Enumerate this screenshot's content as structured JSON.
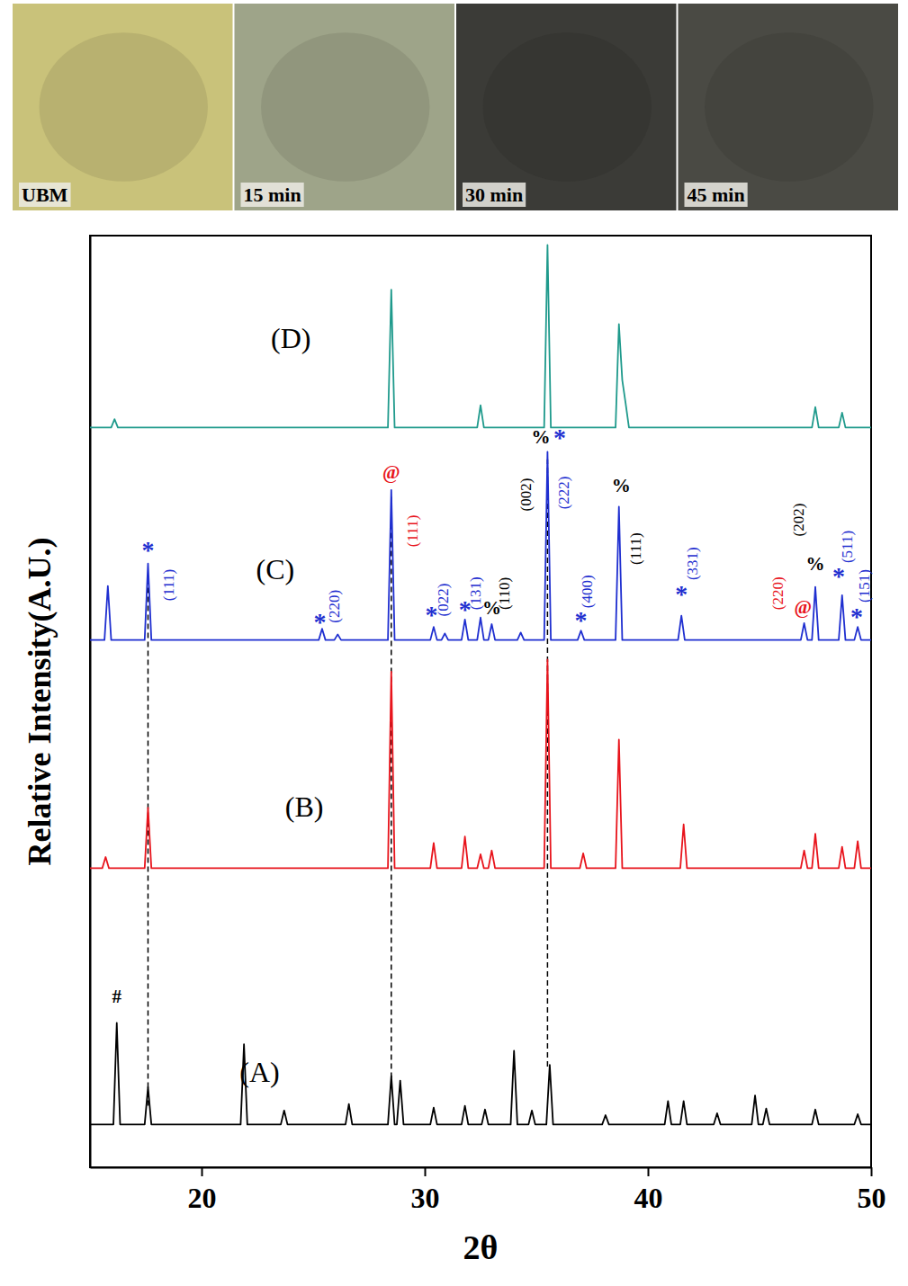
{
  "photos": [
    {
      "label": "UBM"
    },
    {
      "label": "15 min"
    },
    {
      "label": "30 min"
    },
    {
      "label": "45 min"
    }
  ],
  "chart_data": {
    "type": "line",
    "x_label": "2θ",
    "y_label": "Relative Intensity(A.U.)",
    "xlim": [
      15,
      50
    ],
    "xticks": [
      20,
      30,
      40,
      50
    ],
    "ylim": [
      0,
      100
    ],
    "yticks": [],
    "tick_labels": "x",
    "grid": false,
    "series": [
      {
        "name": "(A)",
        "color": "#000000",
        "label_x": 22.6,
        "label_y": 9.9,
        "x": [
          15,
          16.05,
          16.2,
          16.35,
          17.45,
          17.6,
          17.75,
          21.75,
          21.9,
          22.05,
          23.55,
          23.7,
          23.85,
          26.45,
          26.6,
          26.75,
          28.35,
          28.5,
          28.65,
          28.75,
          28.9,
          29.05,
          30.25,
          30.4,
          30.55,
          31.65,
          31.8,
          31.95,
          32.55,
          32.7,
          32.85,
          33.85,
          34.0,
          34.15,
          34.65,
          34.8,
          34.95,
          35.45,
          35.6,
          35.75,
          37.95,
          38.1,
          38.25,
          40.75,
          40.9,
          41.05,
          41.45,
          41.6,
          41.75,
          42.95,
          43.1,
          43.25,
          44.65,
          44.8,
          44.95,
          45.15,
          45.3,
          45.45,
          47.35,
          47.5,
          47.65,
          49.25,
          49.4,
          49.55,
          50
        ],
        "values": [
          4.6,
          4.6,
          15.5,
          4.6,
          4.6,
          8.6,
          4.6,
          4.6,
          13.2,
          4.6,
          4.6,
          6.1,
          4.6,
          4.6,
          6.8,
          4.6,
          4.6,
          9.8,
          4.6,
          4.6,
          9.3,
          4.6,
          4.6,
          6.4,
          4.6,
          4.6,
          6.6,
          4.6,
          4.6,
          6.2,
          4.6,
          4.6,
          12.5,
          4.6,
          4.6,
          6.1,
          4.6,
          4.6,
          11.0,
          4.6,
          4.6,
          5.6,
          4.6,
          4.6,
          7.1,
          4.6,
          4.6,
          7.1,
          4.6,
          4.6,
          5.8,
          4.6,
          4.6,
          7.7,
          4.6,
          4.6,
          6.3,
          4.6,
          4.6,
          6.2,
          4.6,
          4.6,
          5.7,
          4.6,
          4.6
        ]
      },
      {
        "name": "(B)",
        "color": "#e8141c",
        "label_x": 24.6,
        "label_y": 38.4,
        "x": [
          15,
          15.55,
          15.7,
          15.85,
          17.45,
          17.6,
          17.75,
          28.35,
          28.5,
          28.65,
          30.25,
          30.4,
          30.55,
          31.65,
          31.8,
          31.95,
          32.35,
          32.5,
          32.65,
          32.85,
          33.0,
          33.15,
          35.35,
          35.5,
          35.65,
          36.95,
          37.1,
          37.25,
          38.55,
          38.7,
          38.85,
          41.45,
          41.6,
          41.75,
          46.85,
          47.0,
          47.15,
          47.35,
          47.5,
          47.65,
          48.55,
          48.7,
          48.85,
          49.25,
          49.4,
          49.55,
          50
        ],
        "values": [
          32.1,
          32.1,
          33.3,
          32.1,
          32.1,
          38.6,
          32.1,
          32.1,
          53.2,
          32.1,
          32.1,
          34.8,
          32.1,
          32.1,
          35.5,
          32.1,
          32.1,
          33.6,
          32.1,
          32.1,
          34.0,
          32.1,
          32.1,
          54.5,
          32.1,
          32.1,
          33.7,
          32.1,
          32.1,
          45.9,
          32.1,
          32.1,
          36.8,
          32.1,
          32.1,
          34.0,
          32.1,
          32.1,
          35.8,
          32.1,
          32.1,
          34.4,
          32.1,
          32.1,
          35.0,
          32.1,
          32.1
        ]
      },
      {
        "name": "(C)",
        "color": "#1f2fd0",
        "label_x": 23.3,
        "label_y": 63.8,
        "x": [
          15,
          15.65,
          15.8,
          15.95,
          17.45,
          17.6,
          17.75,
          25.25,
          25.4,
          25.55,
          25.95,
          26.1,
          26.25,
          28.35,
          28.5,
          28.65,
          30.25,
          30.4,
          30.55,
          30.75,
          30.9,
          31.05,
          31.65,
          31.8,
          31.95,
          32.35,
          32.5,
          32.65,
          32.85,
          33.0,
          33.15,
          34.15,
          34.3,
          34.45,
          35.35,
          35.5,
          35.65,
          36.85,
          37.0,
          37.15,
          38.55,
          38.7,
          38.85,
          41.35,
          41.5,
          41.65,
          46.85,
          47.0,
          47.15,
          47.35,
          47.5,
          47.65,
          48.55,
          48.7,
          48.85,
          49.25,
          49.4,
          49.55,
          50
        ],
        "values": [
          56.6,
          56.6,
          62.4,
          56.6,
          56.6,
          64.8,
          56.6,
          56.6,
          57.8,
          56.6,
          56.6,
          57.2,
          56.6,
          56.6,
          72.7,
          56.6,
          56.6,
          58.0,
          56.6,
          56.6,
          57.3,
          56.6,
          56.6,
          58.8,
          56.6,
          56.6,
          59.0,
          56.6,
          56.6,
          58.3,
          56.6,
          56.6,
          57.4,
          56.6,
          56.6,
          76.8,
          56.6,
          56.6,
          57.6,
          56.6,
          56.6,
          70.9,
          56.6,
          56.6,
          59.2,
          56.6,
          56.6,
          58.4,
          56.6,
          56.6,
          62.3,
          56.6,
          56.6,
          61.4,
          56.6,
          56.6,
          58.0,
          56.6,
          56.6
        ]
      },
      {
        "name": "(D)",
        "color": "#1f9a8c",
        "label_x": 24.0,
        "label_y": 88.6,
        "x": [
          15,
          15.95,
          16.1,
          16.25,
          28.35,
          28.5,
          28.65,
          32.35,
          32.5,
          32.65,
          35.35,
          35.5,
          35.65,
          38.55,
          38.7,
          38.85,
          39.0,
          39.15,
          47.35,
          47.5,
          47.65,
          48.55,
          48.7,
          48.85,
          50
        ],
        "values": [
          79.4,
          79.4,
          80.3,
          79.4,
          79.4,
          94.2,
          79.4,
          79.4,
          81.8,
          79.4,
          79.4,
          99.0,
          79.4,
          79.4,
          90.5,
          84.5,
          82.0,
          79.4,
          79.4,
          81.6,
          79.4,
          79.4,
          81.0,
          79.4,
          79.4
        ]
      }
    ],
    "reference_lines": [
      {
        "x": 17.6,
        "y": [
          6.6,
          63.0
        ]
      },
      {
        "x": 28.5,
        "y": [
          9.6,
          72.0
        ]
      },
      {
        "x": 35.5,
        "y": [
          10.8,
          76.0
        ]
      }
    ],
    "annotations": [
      {
        "text": "#",
        "x": 16.2,
        "y": 18.1,
        "color": "#000000"
      },
      {
        "text": "*",
        "x": 17.6,
        "y": 66.0,
        "color": "#1f2fd0"
      },
      {
        "text": "(111)",
        "x": 18.6,
        "y": 62.5,
        "color": "#1f2fd0"
      },
      {
        "text": "*",
        "x": 25.3,
        "y": 58.2,
        "color": "#1f2fd0"
      },
      {
        "text": "(220)",
        "x": 26.0,
        "y": 60.2,
        "color": "#1f2fd0"
      },
      {
        "text": "@",
        "x": 28.5,
        "y": 74.4,
        "color": "#e8141c"
      },
      {
        "text": "(111)",
        "x": 29.5,
        "y": 68.3,
        "color": "#e8141c"
      },
      {
        "text": "*",
        "x": 30.3,
        "y": 59.0,
        "color": "#1f2fd0"
      },
      {
        "text": "(022)",
        "x": 30.9,
        "y": 60.9,
        "color": "#1f2fd0"
      },
      {
        "text": "*",
        "x": 31.8,
        "y": 59.6,
        "color": "#1f2fd0"
      },
      {
        "text": "(131)",
        "x": 32.35,
        "y": 61.6,
        "color": "#1f2fd0"
      },
      {
        "text": "%",
        "x": 33.0,
        "y": 59.8,
        "color": "#000000"
      },
      {
        "text": "(110)",
        "x": 33.65,
        "y": 61.6,
        "color": "#000000"
      },
      {
        "text": "%",
        "x": 35.2,
        "y": 78.2,
        "color": "#000000"
      },
      {
        "text": "(002)",
        "x": 34.6,
        "y": 72.2,
        "color": "#000000"
      },
      {
        "text": "*",
        "x": 36.05,
        "y": 78.0,
        "color": "#1f2fd0"
      },
      {
        "text": "(222)",
        "x": 36.3,
        "y": 72.4,
        "color": "#1f2fd0"
      },
      {
        "text": "*",
        "x": 37.0,
        "y": 58.4,
        "color": "#1f2fd0"
      },
      {
        "text": "(400)",
        "x": 37.35,
        "y": 61.8,
        "color": "#1f2fd0"
      },
      {
        "text": "%",
        "x": 38.8,
        "y": 73.0,
        "color": "#000000"
      },
      {
        "text": "(111)",
        "x": 39.5,
        "y": 66.4,
        "color": "#000000"
      },
      {
        "text": "*",
        "x": 41.5,
        "y": 61.2,
        "color": "#1f2fd0"
      },
      {
        "text": "(331)",
        "x": 42.05,
        "y": 64.8,
        "color": "#1f2fd0"
      },
      {
        "text": "(220)",
        "x": 45.9,
        "y": 61.6,
        "color": "#e8141c"
      },
      {
        "text": "@",
        "x": 46.95,
        "y": 59.9,
        "color": "#e8141c"
      },
      {
        "text": "(202)",
        "x": 46.8,
        "y": 69.5,
        "color": "#000000"
      },
      {
        "text": "%",
        "x": 47.5,
        "y": 64.6,
        "color": "#000000"
      },
      {
        "text": "*",
        "x": 48.55,
        "y": 63.2,
        "color": "#1f2fd0"
      },
      {
        "text": "(511)",
        "x": 49.0,
        "y": 66.6,
        "color": "#1f2fd0"
      },
      {
        "text": "*",
        "x": 49.35,
        "y": 58.8,
        "color": "#1f2fd0"
      },
      {
        "text": "(151)",
        "x": 49.75,
        "y": 62.4,
        "color": "#1f2fd0"
      }
    ]
  }
}
